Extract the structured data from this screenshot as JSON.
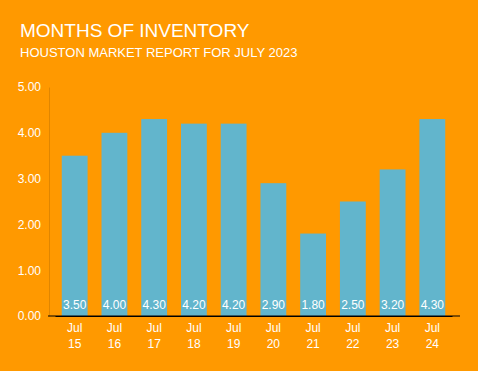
{
  "chart_data": {
    "type": "bar",
    "title": "MONTHS OF INVENTORY",
    "subtitle": "HOUSTON MARKET REPORT FOR JULY 2023",
    "categories": [
      "Jul 15",
      "Jul 16",
      "Jul 17",
      "Jul 18",
      "Jul 19",
      "Jul 20",
      "Jul 21",
      "Jul 22",
      "Jul 23",
      "Jul 24"
    ],
    "values": [
      3.5,
      4.0,
      4.3,
      4.2,
      4.2,
      2.9,
      1.8,
      2.5,
      3.2,
      4.3
    ],
    "value_labels": [
      "3.50",
      "4.00",
      "4.30",
      "4.20",
      "4.20",
      "2.90",
      "1.80",
      "2.50",
      "3.20",
      "4.30"
    ],
    "color": "#62b5cc",
    "data_labels": true,
    "grid": false,
    "ylim": [
      0,
      5
    ],
    "yticks": [
      {
        "value": 0,
        "label": "0.00"
      },
      {
        "value": 1,
        "label": "1.00"
      },
      {
        "value": 2,
        "label": "2.00"
      },
      {
        "value": 3,
        "label": "3.00"
      },
      {
        "value": 4,
        "label": "4.00"
      },
      {
        "value": 5,
        "label": "5.00"
      }
    ]
  }
}
